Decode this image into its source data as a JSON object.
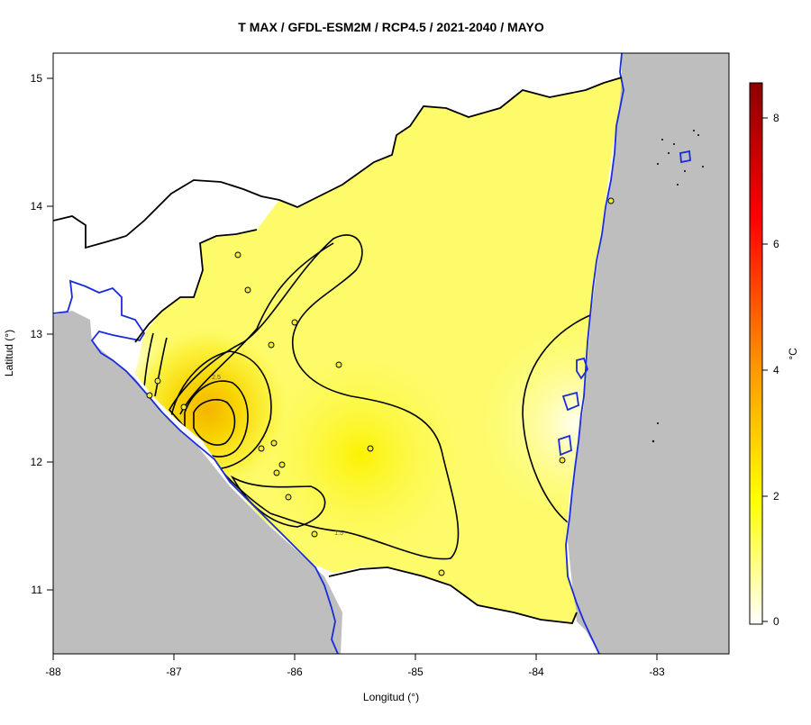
{
  "title": "T MAX / GFDL-ESM2M / RCP4.5 / 2021-2040 / MAYO",
  "axes": {
    "xlabel": "Longitud (°)",
    "ylabel": "Latitud (°)",
    "xticks": [
      "-88",
      "-87",
      "-86",
      "-85",
      "-84",
      "-83"
    ],
    "yticks": [
      "15",
      "14",
      "13",
      "12",
      "11"
    ]
  },
  "colorbar": {
    "label": "°C",
    "ticks": [
      "8",
      "6",
      "4",
      "2",
      "0"
    ],
    "range": [
      0,
      8.5
    ],
    "colors": [
      "#ffffff",
      "#ffff00",
      "#ff9900",
      "#ff0000",
      "#8b0000"
    ]
  },
  "contour_labels": [
    "2.5",
    "1.5"
  ],
  "colors": {
    "sea": "#bebebe",
    "coastline": "#1a2bdc",
    "border": "#000000",
    "base_fill": "#fdfb6a"
  }
}
